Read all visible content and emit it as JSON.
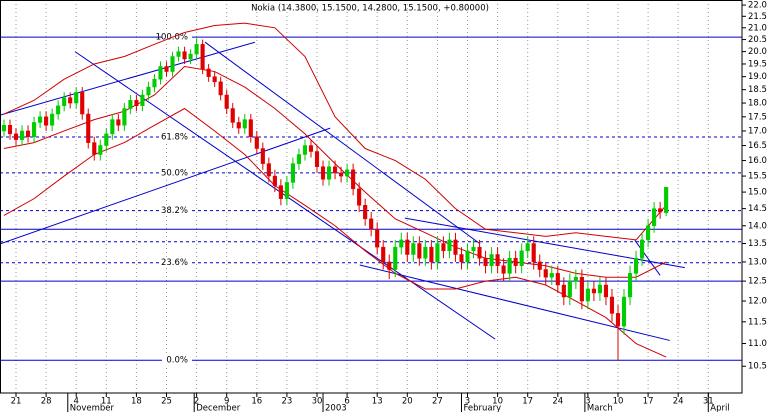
{
  "chart_data": {
    "type": "candlestick",
    "title": "Nokia (14.3800, 15.1500, 14.2800, 15.1500, +0.80000)",
    "ylog": true,
    "ylim": [
      9.94,
      22.23
    ],
    "yticks": [
      {
        "value": 22,
        "label": "22.0"
      },
      21.5,
      {
        "value": 21,
        "label": "21.0"
      },
      20.5,
      {
        "value": 20,
        "label": "20.0"
      },
      19.5,
      {
        "value": 19,
        "label": "19.0"
      },
      18.5,
      {
        "value": 18,
        "label": "18.0"
      },
      17.5,
      {
        "value": 17,
        "label": "17.0"
      },
      16.5,
      {
        "value": 16,
        "label": "16.0"
      },
      15.5,
      {
        "value": 15,
        "label": "15.0"
      },
      14.5,
      {
        "value": 14,
        "label": "14.0"
      },
      13.5,
      {
        "value": 13,
        "label": "13.0"
      },
      12.5,
      {
        "value": 12,
        "label": "12.0"
      },
      11.5,
      {
        "value": 11,
        "label": "11.0"
      },
      10.5
    ],
    "xlim": [
      -0.66,
      122.6
    ],
    "xticks": [
      {
        "value": 2,
        "label": "21"
      },
      {
        "value": 7,
        "label": "28"
      },
      {
        "value": 12,
        "label": "4"
      },
      {
        "value": 17,
        "label": "11"
      },
      {
        "value": 22,
        "label": "18"
      },
      {
        "value": 27,
        "label": "25"
      },
      {
        "value": 32,
        "label": "2"
      },
      {
        "value": 37,
        "label": "9"
      },
      {
        "value": 42,
        "label": "16"
      },
      {
        "value": 47,
        "label": "23"
      },
      {
        "value": 52,
        "label": "30"
      },
      {
        "value": 57,
        "label": "6"
      },
      {
        "value": 62,
        "label": "13"
      },
      {
        "value": 67,
        "label": "20"
      },
      {
        "value": 72,
        "label": "27"
      },
      {
        "value": 77,
        "label": "3"
      },
      {
        "value": 82,
        "label": "10"
      },
      {
        "value": 87,
        "label": "17"
      },
      {
        "value": 92,
        "label": "24"
      },
      {
        "value": 97,
        "label": "3"
      },
      {
        "value": 102,
        "label": "10"
      },
      {
        "value": 107,
        "label": "17"
      },
      {
        "value": 112,
        "label": "24"
      },
      {
        "value": 117,
        "label": "31"
      }
    ],
    "month_ticks": [
      {
        "value": 10.6,
        "label": "November"
      },
      {
        "value": 31.6,
        "label": "December"
      },
      {
        "value": 53,
        "label": "2003"
      },
      {
        "value": 76,
        "label": "February"
      },
      {
        "value": 96.5,
        "label": "March"
      },
      {
        "value": 117,
        "label": "April"
      }
    ],
    "grid": true,
    "up_color": "#00cc00",
    "down_color": "#e00000",
    "open": [
      17.0,
      17.2,
      16.9,
      16.7,
      17.0,
      16.8,
      17.3,
      17.5,
      17.2,
      17.6,
      17.9,
      18.2,
      18.0,
      18.4,
      17.6,
      16.6,
      16.2,
      16.5,
      16.9,
      17.4,
      17.2,
      17.8,
      18.1,
      17.9,
      18.3,
      18.6,
      18.9,
      19.4,
      19.2,
      19.8,
      20.0,
      19.7,
      19.9,
      20.3,
      19.3,
      19.0,
      18.8,
      18.3,
      17.8,
      17.3,
      17.1,
      17.4,
      16.8,
      16.4,
      15.9,
      15.5,
      15.2,
      14.8,
      15.3,
      15.9,
      16.2,
      16.5,
      16.3,
      15.8,
      15.4,
      15.8,
      15.6,
      15.5,
      15.7,
      15.1,
      14.6,
      14.2,
      13.9,
      13.4,
      13.0,
      12.8,
      13.4,
      13.6,
      13.2,
      13.5,
      13.1,
      13.4,
      13.0,
      13.5,
      13.3,
      13.6,
      13.2,
      13.0,
      13.3,
      13.4,
      13.1,
      12.9,
      13.2,
      12.9,
      12.7,
      13.1,
      12.9,
      13.3,
      13.5,
      13.0,
      12.8,
      12.6,
      12.7,
      12.4,
      12.1,
      12.5,
      12.6,
      12.0,
      12.3,
      12.2,
      12.4,
      12.1,
      11.7,
      11.4,
      12.1,
      12.7,
      13.1,
      13.6,
      14.0,
      14.5,
      14.38
    ],
    "high": [
      17.4,
      17.4,
      17.1,
      17.2,
      17.2,
      17.5,
      17.7,
      17.7,
      17.8,
      18.1,
      18.4,
      18.4,
      18.6,
      18.6,
      17.8,
      16.8,
      16.7,
      17.1,
      17.6,
      17.6,
      18.0,
      18.3,
      18.3,
      18.5,
      18.8,
      19.1,
      19.6,
      19.6,
      20.0,
      20.2,
      20.2,
      20.1,
      20.56,
      20.5,
      19.5,
      19.2,
      19.0,
      18.5,
      18.0,
      17.5,
      17.6,
      17.6,
      17.0,
      16.6,
      16.1,
      15.7,
      15.4,
      15.5,
      16.1,
      16.4,
      16.7,
      16.7,
      16.5,
      16.0,
      16.0,
      16.0,
      15.8,
      15.9,
      15.9,
      15.3,
      14.8,
      14.4,
      14.1,
      13.6,
      13.2,
      13.6,
      13.8,
      13.8,
      13.7,
      13.7,
      13.6,
      13.6,
      13.7,
      13.7,
      13.8,
      13.8,
      13.4,
      13.5,
      13.6,
      13.6,
      13.3,
      13.4,
      13.4,
      13.1,
      13.3,
      13.3,
      13.5,
      13.7,
      13.7,
      13.2,
      13.0,
      12.9,
      12.9,
      12.6,
      12.7,
      12.8,
      12.8,
      12.5,
      12.5,
      12.6,
      12.6,
      12.3,
      11.9,
      12.3,
      12.9,
      13.3,
      13.8,
      14.2,
      14.7,
      14.7,
      15.15
    ],
    "low": [
      16.8,
      16.7,
      16.5,
      16.5,
      16.6,
      16.6,
      17.1,
      17.0,
      17.0,
      17.4,
      17.7,
      17.8,
      17.8,
      17.4,
      16.4,
      16.0,
      16.0,
      16.3,
      16.7,
      17.0,
      17.0,
      17.6,
      17.7,
      17.7,
      18.1,
      18.4,
      18.7,
      19.0,
      19.0,
      19.6,
      19.5,
      19.5,
      19.7,
      19.1,
      18.8,
      18.6,
      18.1,
      17.6,
      17.1,
      16.9,
      16.9,
      16.6,
      16.2,
      15.7,
      15.3,
      15.0,
      14.6,
      14.6,
      15.1,
      15.7,
      16.0,
      16.1,
      15.6,
      15.2,
      15.2,
      15.4,
      15.3,
      15.3,
      14.9,
      14.4,
      14.0,
      13.7,
      13.2,
      12.8,
      12.55,
      12.6,
      13.2,
      13.0,
      13.0,
      12.9,
      12.9,
      12.8,
      12.8,
      13.1,
      13.1,
      13.0,
      12.8,
      12.8,
      13.1,
      12.9,
      12.7,
      12.7,
      12.7,
      12.5,
      12.5,
      12.7,
      12.7,
      13.1,
      12.8,
      12.6,
      12.4,
      12.4,
      12.2,
      11.9,
      11.9,
      12.3,
      11.8,
      11.8,
      12.0,
      12.0,
      11.9,
      11.5,
      10.63,
      11.2,
      11.9,
      12.5,
      12.9,
      13.4,
      13.8,
      14.2,
      14.28
    ],
    "close": [
      17.2,
      16.9,
      16.7,
      17.0,
      16.8,
      17.3,
      17.5,
      17.2,
      17.6,
      17.9,
      18.2,
      18.0,
      18.4,
      17.6,
      16.6,
      16.2,
      16.5,
      16.9,
      17.4,
      17.2,
      17.8,
      18.1,
      17.9,
      18.3,
      18.6,
      18.9,
      19.4,
      19.2,
      19.8,
      20.0,
      19.7,
      19.9,
      20.3,
      19.3,
      19.0,
      18.8,
      18.3,
      17.8,
      17.3,
      17.1,
      17.4,
      16.8,
      16.4,
      15.9,
      15.5,
      15.2,
      14.8,
      15.3,
      15.9,
      16.2,
      16.5,
      16.3,
      15.8,
      15.4,
      15.8,
      15.6,
      15.5,
      15.7,
      15.1,
      14.6,
      14.2,
      13.9,
      13.4,
      13.0,
      12.8,
      13.4,
      13.6,
      13.2,
      13.5,
      13.1,
      13.4,
      13.0,
      13.5,
      13.3,
      13.6,
      13.2,
      13.0,
      13.3,
      13.4,
      13.1,
      12.9,
      13.2,
      12.9,
      12.7,
      13.1,
      12.9,
      13.3,
      13.5,
      13.0,
      12.8,
      12.6,
      12.7,
      12.4,
      12.1,
      12.5,
      12.6,
      12.0,
      12.3,
      12.2,
      12.4,
      12.1,
      11.7,
      11.4,
      12.1,
      12.7,
      13.1,
      13.6,
      14.0,
      14.5,
      14.4,
      15.15
    ],
    "overlays": [
      {
        "color": "#d00000",
        "x": [
          0,
          5,
          10,
          15,
          20,
          25,
          30,
          35,
          40,
          45,
          50,
          55,
          60,
          65,
          70,
          75,
          80,
          85,
          90,
          95,
          100,
          105,
          110
        ],
        "values": [
          17.6,
          18.1,
          18.9,
          19.5,
          19.8,
          20.3,
          20.8,
          21.1,
          21.2,
          21.0,
          19.8,
          17.5,
          16.4,
          16.0,
          15.4,
          14.5,
          13.9,
          13.8,
          13.7,
          13.8,
          13.7,
          13.6,
          14.6
        ]
      },
      {
        "color": "#d00000",
        "x": [
          0,
          5,
          10,
          15,
          20,
          25,
          30,
          35,
          40,
          45,
          50,
          55,
          60,
          65,
          70,
          75,
          80,
          85,
          90,
          95,
          100,
          105,
          110
        ],
        "values": [
          16.4,
          16.6,
          17.0,
          17.4,
          17.7,
          18.3,
          19.4,
          19.2,
          18.6,
          17.8,
          16.9,
          15.9,
          15.0,
          14.2,
          13.8,
          13.4,
          13.1,
          13.0,
          12.9,
          12.7,
          12.6,
          12.6,
          13.0
        ]
      },
      {
        "color": "#d00000",
        "x": [
          0,
          5,
          10,
          15,
          20,
          25,
          30,
          35,
          40,
          45,
          50,
          55,
          60,
          65,
          70,
          75,
          80,
          85,
          90,
          95,
          100,
          105,
          110
        ],
        "values": [
          14.3,
          14.8,
          15.5,
          16.2,
          16.6,
          17.2,
          17.8,
          17.0,
          16.2,
          15.2,
          14.6,
          14.0,
          13.3,
          12.7,
          12.3,
          12.3,
          12.5,
          12.6,
          12.4,
          12.0,
          11.6,
          11.0,
          10.7
        ]
      }
    ],
    "trendlines": [
      {
        "color": "#0000cc",
        "x": [
          -0.66,
          41.7
        ],
        "values": [
          17.56,
          20.39
        ]
      },
      {
        "color": "#0000cc",
        "x": [
          11.8,
          81.6
        ],
        "values": [
          20.0,
          11.1
        ]
      },
      {
        "color": "#0000cc",
        "x": [
          -0.66,
          54.2
        ],
        "values": [
          13.49,
          17.1
        ]
      },
      {
        "color": "#0000cc",
        "x": [
          33.4,
          79.1
        ],
        "values": [
          20.39,
          13.49
        ]
      },
      {
        "color": "#0000cc",
        "x": [
          59.1,
          110.6
        ],
        "values": [
          12.92,
          11.07
        ]
      },
      {
        "color": "#0000cc",
        "x": [
          66.6,
          113.1
        ],
        "values": [
          14.22,
          12.85
        ]
      },
      {
        "color": "#0000cc",
        "x": [
          104.8,
          109
        ],
        "values": [
          13.59,
          12.65
        ]
      }
    ],
    "fib_levels": [
      {
        "value": 20.6,
        "label": "100.0%",
        "dashed": false
      },
      {
        "value": 16.79,
        "label": "61.8%",
        "dashed": true
      },
      {
        "value": 15.6,
        "label": "50.0%",
        "dashed": true
      },
      {
        "value": 14.44,
        "label": "38.2%",
        "dashed": true
      },
      {
        "value": 12.98,
        "label": "23.6%",
        "dashed": true
      },
      {
        "value": 10.63,
        "label": "0.0%",
        "dashed": false
      }
    ],
    "hlines": [
      {
        "value": 13.9,
        "dashed": false
      },
      {
        "value": 13.55,
        "dashed": true
      },
      {
        "value": 12.5,
        "dashed": false
      }
    ],
    "line_color": "#0000cc"
  }
}
